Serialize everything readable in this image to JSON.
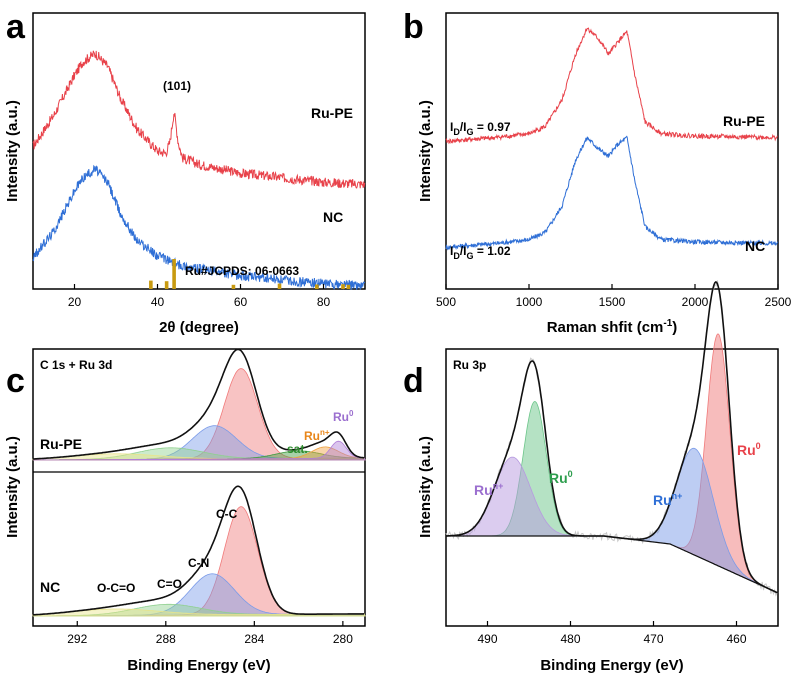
{
  "chart_data": [
    {
      "panel": "a",
      "type": "line",
      "xlabel": "2θ (degree)",
      "ylabel": "Intensity (a.u.)",
      "xlim": [
        10,
        90
      ],
      "xticks": [
        20,
        40,
        60,
        80
      ],
      "series": [
        {
          "name": "Ru-PE",
          "color": "#e8424a",
          "x": [
            10,
            15,
            20,
            22,
            25,
            28,
            31,
            35,
            40,
            42,
            43,
            44,
            45,
            46,
            50,
            60,
            70,
            80,
            90
          ],
          "y": [
            3.2,
            3.9,
            4.8,
            5.1,
            5.3,
            5.0,
            4.3,
            3.6,
            3.1,
            3.05,
            3.3,
            4.0,
            3.3,
            2.95,
            2.8,
            2.6,
            2.5,
            2.4,
            2.35
          ]
        },
        {
          "name": "NC",
          "color": "#2f6fd6",
          "x": [
            10,
            15,
            20,
            22,
            25,
            28,
            31,
            35,
            40,
            45,
            50,
            60,
            70,
            80,
            90
          ],
          "y": [
            0.7,
            1.3,
            2.2,
            2.5,
            2.7,
            2.4,
            1.7,
            1.1,
            0.75,
            0.55,
            0.45,
            0.3,
            0.2,
            0.12,
            0.08
          ]
        }
      ],
      "reference": {
        "label": "Ru#JCPDS: 06-0663",
        "color": "#c89a10",
        "peaks": [
          [
            38.4,
            0.28
          ],
          [
            42.2,
            0.26
          ],
          [
            44.0,
            1.0
          ],
          [
            58.3,
            0.14
          ],
          [
            69.4,
            0.18
          ],
          [
            78.4,
            0.15
          ],
          [
            84.7,
            0.16
          ],
          [
            86.0,
            0.14
          ]
        ]
      },
      "annotations": [
        "(101)",
        "Ru-PE",
        "NC"
      ],
      "panel_label": "a"
    },
    {
      "panel": "b",
      "type": "line",
      "xlabel": "Raman shfit (cm",
      "xlabel_sup": "-1",
      "xlabel_close": ")",
      "ylabel": "Intensity (a.u.)",
      "xlim": [
        500,
        2500
      ],
      "xticks": [
        500,
        1000,
        1500,
        2000,
        2500
      ],
      "series": [
        {
          "name": "Ru-PE",
          "color": "#e8424a",
          "x": [
            500,
            800,
            1000,
            1100,
            1200,
            1280,
            1350,
            1420,
            1480,
            1530,
            1590,
            1640,
            1700,
            1800,
            2000,
            2500
          ],
          "y": [
            1.55,
            1.6,
            1.65,
            1.75,
            2.1,
            2.7,
            3.05,
            2.9,
            2.7,
            2.85,
            3.0,
            2.4,
            1.8,
            1.65,
            1.62,
            1.6
          ]
        },
        {
          "name": "NC",
          "color": "#2f6fd6",
          "x": [
            500,
            800,
            1000,
            1100,
            1200,
            1280,
            1350,
            1420,
            1480,
            1530,
            1590,
            1640,
            1700,
            1800,
            2000,
            2500
          ],
          "y": [
            0.15,
            0.2,
            0.25,
            0.35,
            0.7,
            1.3,
            1.6,
            1.45,
            1.35,
            1.5,
            1.6,
            1.0,
            0.42,
            0.25,
            0.22,
            0.2
          ]
        }
      ],
      "ratio_labels": [
        {
          "pre": "I",
          "sub1": "D",
          "mid": "/I",
          "sub2": "G",
          "value": " = 0.97"
        },
        {
          "pre": "I",
          "sub1": "D",
          "mid": "/I",
          "sub2": "G",
          "value": " = 1.02"
        }
      ],
      "annotations": [
        "Ru-PE",
        "NC"
      ],
      "panel_label": "b"
    },
    {
      "panel": "c",
      "type": "area",
      "title": "C 1s + Ru 3d",
      "xlabel": "Binding Energy (eV)",
      "ylabel": "Intensity (a.u.)",
      "xlim": [
        294,
        279
      ],
      "xticks": [
        292,
        288,
        284,
        280
      ],
      "top_series": {
        "name": "Ru-PE",
        "peaks": [
          {
            "label": "C-C",
            "center": 284.6,
            "height": 0.95,
            "width": 0.75,
            "color": "#f07a7a"
          },
          {
            "label": "C-N",
            "center": 285.8,
            "height": 0.35,
            "width": 1.0,
            "color": "#7b9be8"
          },
          {
            "label": "C=O",
            "center": 287.8,
            "height": 0.12,
            "width": 1.5,
            "color": "#8fd08f"
          },
          {
            "label": "O-C=O",
            "center": 290.3,
            "height": 0.06,
            "width": 2.0,
            "color": "#e8e48a"
          },
          {
            "label": "sat.",
            "center": 282.0,
            "height": 0.08,
            "width": 1.0,
            "color": "#3e9b3e"
          },
          {
            "label": "Ru^n+",
            "center": 280.8,
            "height": 0.12,
            "width": 0.6,
            "color": "#f0a040"
          },
          {
            "label": "Ru^0",
            "center": 280.2,
            "height": 0.18,
            "width": 0.35,
            "color": "#b07fd8"
          }
        ]
      },
      "bottom_series": {
        "name": "NC",
        "peaks": [
          {
            "label": "C-C",
            "center": 284.6,
            "height": 1.0,
            "width": 0.75,
            "color": "#f07a7a"
          },
          {
            "label": "C-N",
            "center": 285.9,
            "height": 0.38,
            "width": 1.0,
            "color": "#7b9be8"
          },
          {
            "label": "C=O",
            "center": 287.9,
            "height": 0.1,
            "width": 1.5,
            "color": "#8fd08f"
          },
          {
            "label": "O-C=O",
            "center": 290.3,
            "height": 0.06,
            "width": 2.0,
            "color": "#e8e48a"
          }
        ]
      },
      "labels": {
        "ru_pe": "Ru-PE",
        "nc": "NC",
        "cc": "C-C",
        "cn": "C-N",
        "co": "C=O",
        "oco": "O-C=O",
        "sat": "sat.",
        "run_base": "Ru",
        "run_sup": "n+",
        "ru0_base": "Ru",
        "ru0_sup": "0"
      },
      "panel_label": "c"
    },
    {
      "panel": "d",
      "type": "area",
      "title": "Ru 3p",
      "xlabel": "Binding Energy (eV)",
      "ylabel": "Intensity (a.u.)",
      "xlim": [
        495,
        455
      ],
      "xticks": [
        490,
        480,
        470,
        460
      ],
      "peaks": [
        {
          "label": "Ru^0 3p3/2",
          "center": 462.2,
          "height": 1.0,
          "width": 1.4,
          "color": "#f07a7a"
        },
        {
          "label": "Ru^n+ 3p3/2",
          "center": 465.0,
          "height": 0.46,
          "width": 2.2,
          "color": "#7b9be8"
        },
        {
          "label": "Ru^0 3p1/2",
          "center": 484.3,
          "height": 0.58,
          "width": 1.4,
          "color": "#6cc68a"
        },
        {
          "label": "Ru^n+ 3p1/2",
          "center": 487.0,
          "height": 0.34,
          "width": 2.2,
          "color": "#b79ae0"
        }
      ],
      "labels": {
        "ru0_base": "Ru",
        "ru0_sup": "0",
        "run_base": "Ru",
        "run_sup": "n+"
      },
      "panel_label": "d"
    }
  ]
}
